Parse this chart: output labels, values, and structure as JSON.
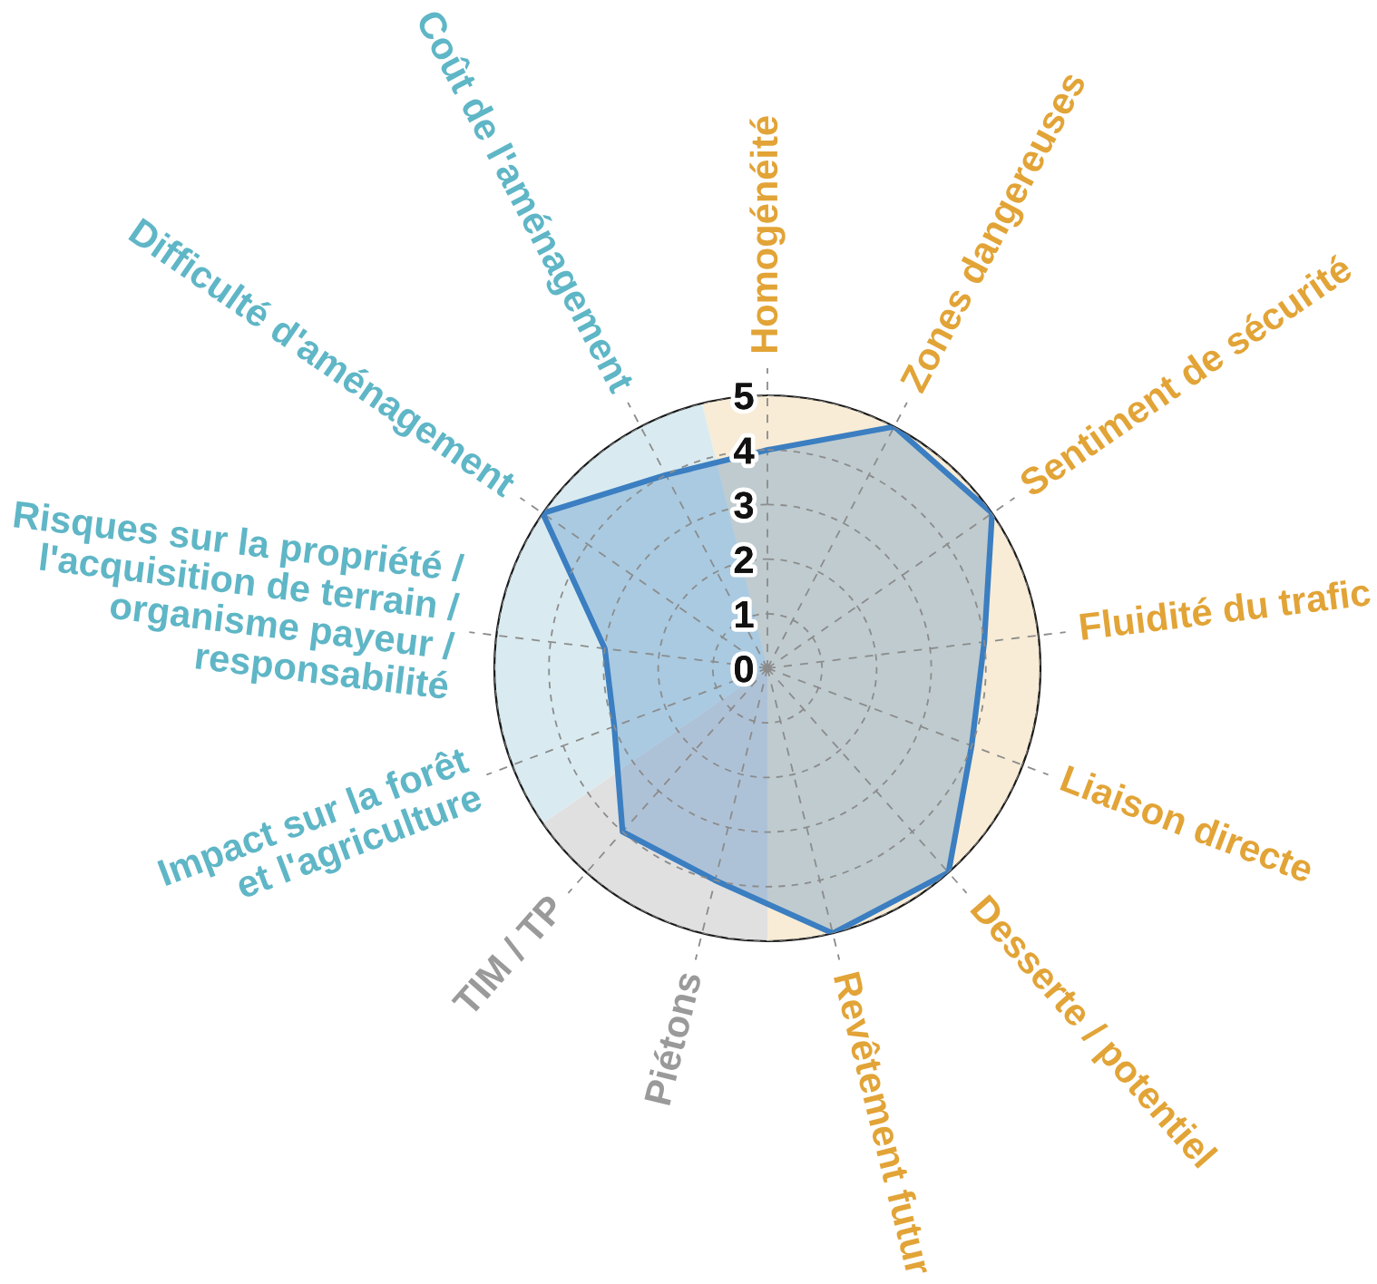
{
  "chart_data": {
    "type": "radar",
    "categories": [
      "Homogénéité",
      "Zones dangereuses",
      "Sentiment de sécurité",
      "Fluidité du trafic",
      "Liaison directe",
      "Desserte / potentiel",
      "Revêtement futur",
      "Piétons",
      "TIM / TP",
      "Impact sur la forêt\net l'agriculture",
      "Risques sur la propriété /\nl'acquisition de terrain /\norganisme payeur /\nresponsabilité",
      "Difficulté d'aménagement",
      "Coût de l'aménagement"
    ],
    "series": [
      {
        "color": "#3b7ec1",
        "values": [
          4,
          5,
          5,
          4,
          4,
          5,
          5,
          4,
          4,
          3,
          3,
          5,
          4
        ]
      }
    ],
    "ylim": [
      0,
      5
    ],
    "yticks": [
      0,
      1,
      2,
      3,
      4,
      5
    ],
    "grid": true
  }
}
